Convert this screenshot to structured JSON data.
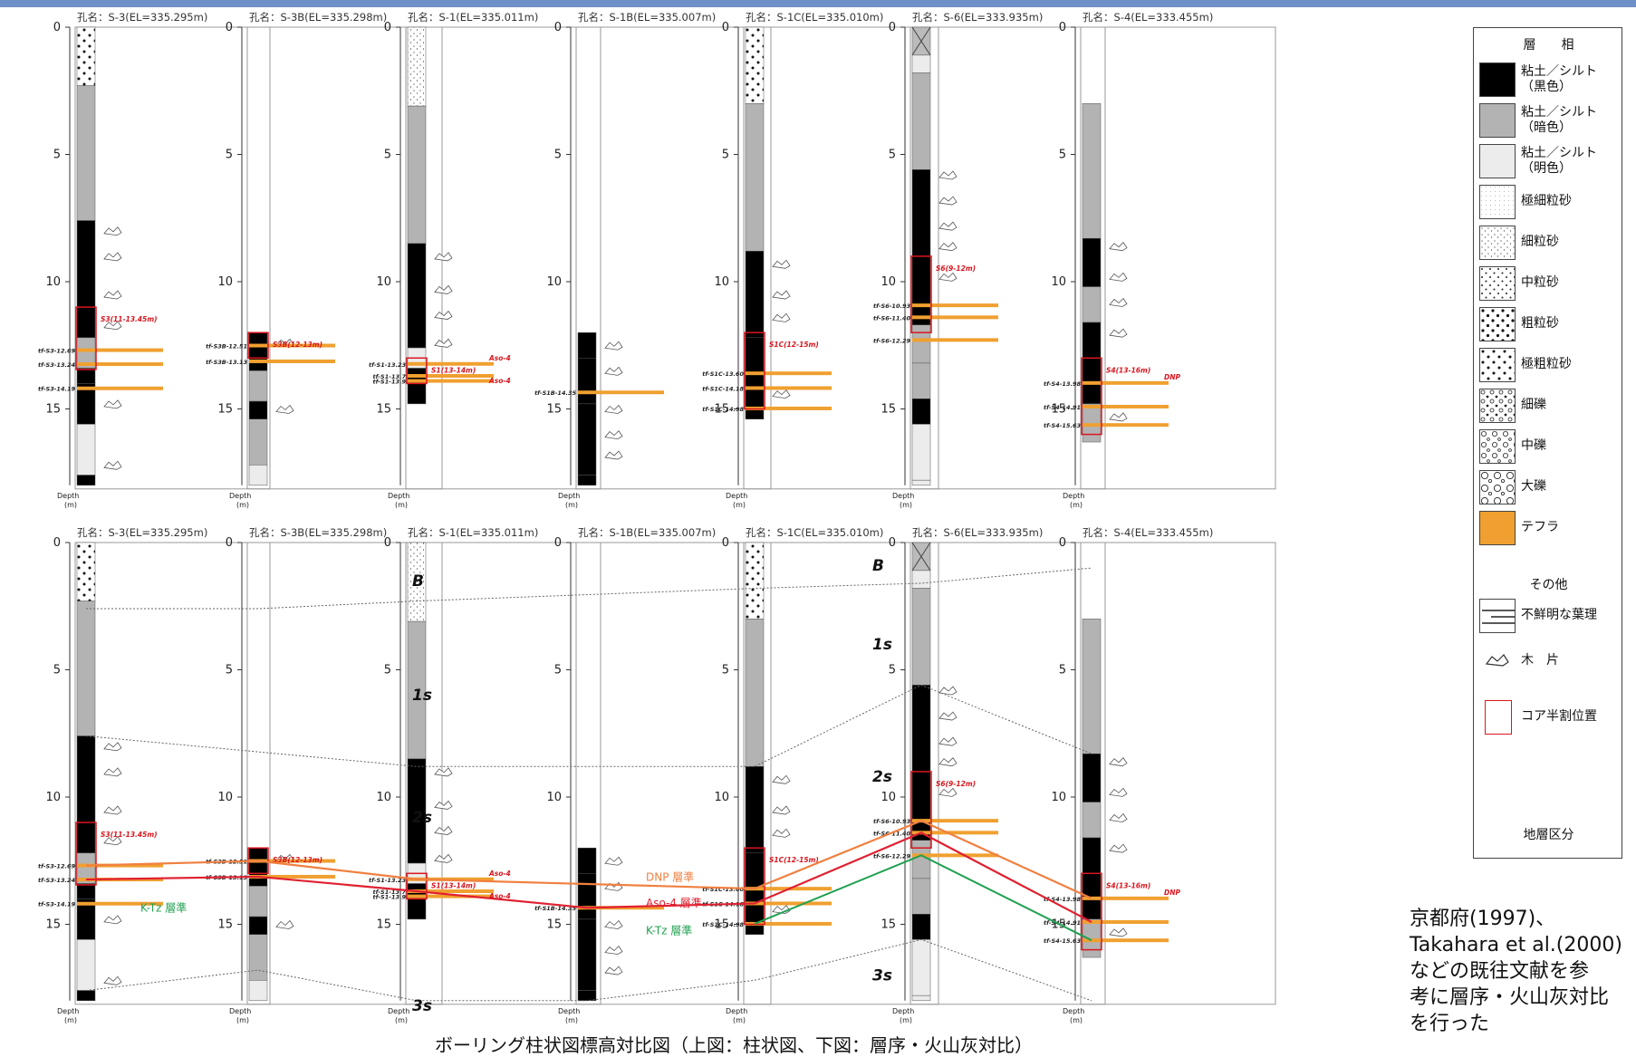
{
  "caption": "ボーリング柱状図標高対比図（上図：柱状図、下図：層序・火山灰対比）",
  "note": [
    "京都府(1997)、",
    "Takahara et al.(2000)",
    "などの既往文献を参",
    "考に層序・火山灰対比",
    "を行った"
  ],
  "colors": {
    "tephra": "#f0a030",
    "red_box": "#d9161e",
    "dnp": "#f08040",
    "aso4": "#e02030",
    "ktz": "#20a050",
    "clay_dark": "#b3b3b3",
    "clay_light": "#ececec",
    "clay_black": "#000000",
    "bar": "#6f8fc8"
  },
  "axis": {
    "ticks": [
      "0",
      "5",
      "10",
      "15"
    ],
    "depth_label": "Depth",
    "unit_label": "(m)"
  },
  "boreholes": [
    {
      "id": "S-3",
      "title": "孔名：S-3(EL=335.295m)",
      "tephra_labels": [
        "tf-S3-12.69",
        "tf-S3-13.24",
        "tf-S3-14.19"
      ],
      "box_label": "S3(11-13.45m)"
    },
    {
      "id": "S-3B",
      "title": "孔名：S-3B(EL=335.298m)",
      "tephra_labels": [
        "tf-S3B-12.51",
        "tf-S3B-13.13"
      ],
      "box_label": "S3B(12-13m)"
    },
    {
      "id": "S-1",
      "title": "孔名：S-1(EL=335.011m)",
      "tephra_labels": [
        "tf-S1-13.23",
        "tf-S1-13.7",
        "tf-S1-13.9"
      ],
      "box_label": "S1(13-14m)",
      "extra": [
        "Aso-4",
        "Aso-4"
      ]
    },
    {
      "id": "S-1B",
      "title": "孔名：S-1B(EL=335.007m)",
      "tephra_labels": [
        "tf-S1B-14.35"
      ],
      "box_label": ""
    },
    {
      "id": "S-1C",
      "title": "孔名：S-1C(EL=335.010m)",
      "tephra_labels": [
        "tf-S1C-13.60",
        "tf-S1C-14.18",
        "tf-S1C-14.98"
      ],
      "box_label": "S1C(12-15m)"
    },
    {
      "id": "S-6",
      "title": "孔名：S-6(EL=333.935m)",
      "tephra_labels": [
        "tf-S6-10.93",
        "tf-S6-11.40",
        "tf-S6-12.29"
      ],
      "box_label": "S6(9-12m)"
    },
    {
      "id": "S-4",
      "title": "孔名：S-4(EL=333.455m)",
      "tephra_labels": [
        "tf-S4-13.98",
        "tf-S4-14.91",
        "tf-S4-15.63"
      ],
      "box_label": "S4(13-16m)",
      "extra": [
        "DNP"
      ]
    }
  ],
  "correlation": {
    "layers": [
      "B",
      "1s",
      "2s",
      "3s"
    ],
    "tephra_names": [
      "DNP 層準",
      "Aso-4 層準",
      "K-Tz 層準"
    ]
  },
  "legend": {
    "title": "層　　相",
    "items": [
      {
        "label": "粘土／シルト（黒色）",
        "pattern": "clay-black"
      },
      {
        "label": "粘土／シルト（暗色）",
        "pattern": "clay-dark"
      },
      {
        "label": "粘土／シルト（明色）",
        "pattern": "clay-light"
      },
      {
        "label": "極細粒砂",
        "pattern": "vfine"
      },
      {
        "label": "細粒砂",
        "pattern": "fine"
      },
      {
        "label": "中粒砂",
        "pattern": "med"
      },
      {
        "label": "粗粒砂",
        "pattern": "coarse"
      },
      {
        "label": "極粗粒砂",
        "pattern": "pebble"
      },
      {
        "label": "細礫",
        "pattern": "gravel-s"
      },
      {
        "label": "中礫",
        "pattern": "gravel-m"
      },
      {
        "label": "大礫",
        "pattern": "gravel-l"
      },
      {
        "label": "テフラ",
        "pattern": "tephra"
      }
    ],
    "other_title": "その他",
    "other": [
      "不鮮明な葉理",
      "木　片",
      "コア半割位置"
    ],
    "unit_label": "地層区分"
  }
}
